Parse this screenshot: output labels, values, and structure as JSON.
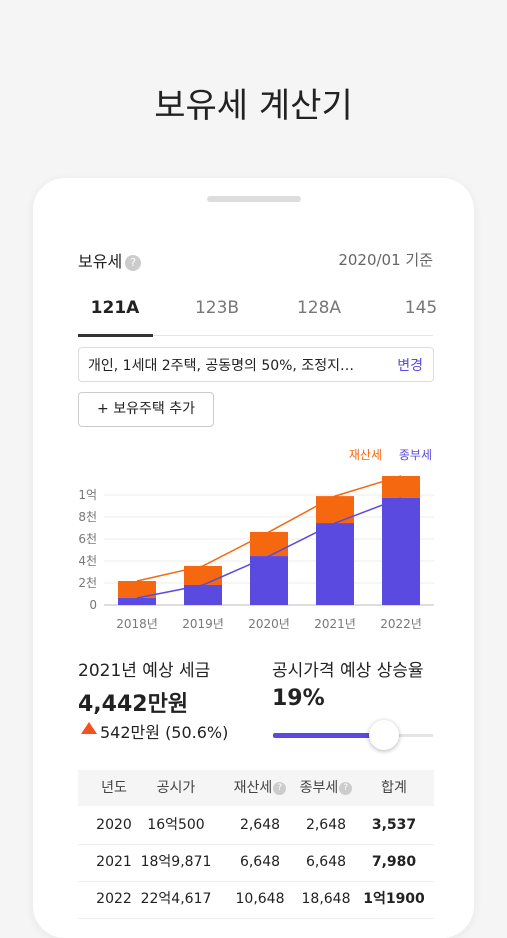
{
  "header": {
    "title": "보유세 계산기"
  },
  "card": {
    "label": "보유세",
    "basis": "2020/01 기준",
    "tabs": [
      "121A",
      "123B",
      "128A",
      "145"
    ],
    "filter": {
      "text": "개인, 1세대 2주택, 공동명의 50%, 조정지…",
      "action": "변경"
    },
    "add_button": "보유주택 추가",
    "chart": {
      "type": "bar",
      "stacked": true,
      "categories": [
        "2018년",
        "2019년",
        "2020년",
        "2021년",
        "2022년"
      ],
      "series": [
        {
          "name": "종부세",
          "color": "#5b4ae0",
          "values": [
            640,
            1820,
            4450,
            7450,
            9730
          ]
        },
        {
          "name": "재산세",
          "color": "#f5680f",
          "values": [
            1540,
            1730,
            2190,
            2450,
            2000
          ]
        }
      ],
      "ylim": [
        0,
        12000
      ],
      "yticks": [
        0,
        {
          "value": 2000,
          "label": "2천"
        },
        {
          "value": 4000,
          "label": "4천"
        },
        {
          "value": 6000,
          "label": "6천"
        },
        {
          "value": 8000,
          "label": "8천"
        },
        {
          "value": 10000,
          "label": "1억"
        }
      ],
      "grid": true
    },
    "summary": {
      "tax_label": "2021년 예상 세금",
      "tax_value": "4,442만원",
      "tax_change": "542만원 (50.6%)",
      "rate_label": "공시가격 예상 상승율",
      "rate_value": "19%"
    },
    "table": {
      "headers": [
        "년도",
        "공시가",
        "재산세",
        "종부세",
        "합계"
      ],
      "rows": [
        [
          "2020",
          "16억500",
          "2,648",
          "2,648",
          "3,537"
        ],
        [
          "2021",
          "18억9,871",
          "6,648",
          "6,648",
          "7,980"
        ],
        [
          "2022",
          "22억4,617",
          "10,648",
          "18,648",
          "1억1900"
        ]
      ]
    }
  }
}
